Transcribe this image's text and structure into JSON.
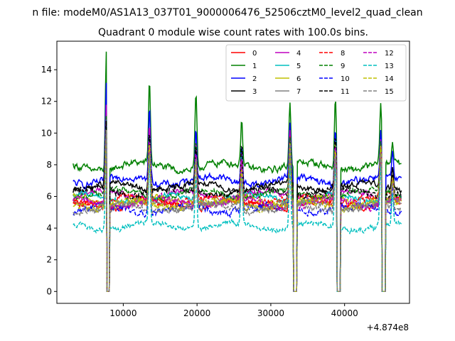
{
  "figure": {
    "suptitle": "n file: modeM0/AS1A13_037T01_9000006476_52506cztM0_level2_quad_clean",
    "title": "Quadrant 0 module wise count rates with 100.0s bins.",
    "offset_label": "+4.874e8"
  },
  "chart_data": {
    "type": "line",
    "title": "Quadrant 0 module wise count rates with 100.0s bins.",
    "xlabel": "",
    "ylabel": "",
    "x_offset": 487400000,
    "xlim": [
      1000,
      48800
    ],
    "ylim": [
      -0.75,
      15.8
    ],
    "xticks": [
      10000,
      20000,
      30000,
      40000
    ],
    "yticks": [
      0,
      2,
      4,
      6,
      8,
      10,
      12,
      14
    ],
    "grid": false,
    "legend_position": "top-right",
    "legend_columns": 4,
    "gap_times": [
      7900,
      33250,
      39150,
      45250
    ],
    "series": [
      {
        "name": "0",
        "color": "#ff0000",
        "style": "solid",
        "base": 5.5,
        "jitter": 0.35,
        "flare": [
          10.5,
          9.0,
          8.5,
          7.5,
          8.5,
          9.5,
          9.2,
          7.0
        ]
      },
      {
        "name": "1",
        "color": "#008000",
        "style": "solid",
        "base": 7.9,
        "jitter": 0.45,
        "flare": [
          15.1,
          13.2,
          12.4,
          11.0,
          12.0,
          12.4,
          11.8,
          9.3
        ]
      },
      {
        "name": "2",
        "color": "#0000ff",
        "style": "solid",
        "base": 7.0,
        "jitter": 0.45,
        "flare": [
          13.0,
          11.9,
          10.3,
          9.5,
          10.5,
          10.6,
          10.0,
          8.5
        ]
      },
      {
        "name": "3",
        "color": "#000000",
        "style": "solid",
        "base": 6.6,
        "jitter": 0.35,
        "flare": [
          11.0,
          10.2,
          9.0,
          8.5,
          9.2,
          9.5,
          9.0,
          8.0
        ]
      },
      {
        "name": "4",
        "color": "#bf00bf",
        "style": "solid",
        "base": 6.1,
        "jitter": 0.35,
        "flare": [
          11.5,
          10.8,
          9.4,
          9.0,
          10.2,
          9.7,
          9.8,
          7.5
        ]
      },
      {
        "name": "5",
        "color": "#00bfbf",
        "style": "solid",
        "base": 5.9,
        "jitter": 0.35,
        "flare": [
          10.8,
          9.9,
          9.0,
          8.5,
          9.6,
          9.4,
          9.3,
          7.2
        ]
      },
      {
        "name": "6",
        "color": "#bfbf00",
        "style": "solid",
        "base": 5.7,
        "jitter": 0.35,
        "flare": [
          10.6,
          9.5,
          8.8,
          8.0,
          9.3,
          9.2,
          9.0,
          7.0
        ]
      },
      {
        "name": "7",
        "color": "#808080",
        "style": "solid",
        "base": 5.4,
        "jitter": 0.35,
        "flare": [
          10.2,
          9.3,
          8.6,
          7.8,
          9.0,
          9.0,
          8.8,
          6.8
        ]
      },
      {
        "name": "8",
        "color": "#ff0000",
        "style": "dashed",
        "base": 5.8,
        "jitter": 0.4,
        "flare": [
          10.7,
          9.6,
          9.0,
          8.2,
          9.4,
          9.3,
          9.2,
          7.1
        ]
      },
      {
        "name": "9",
        "color": "#008000",
        "style": "dashed",
        "base": 6.2,
        "jitter": 0.4,
        "flare": [
          11.0,
          10.0,
          9.2,
          8.4,
          9.6,
          9.5,
          9.4,
          7.3
        ]
      },
      {
        "name": "10",
        "color": "#0000ff",
        "style": "dashed",
        "base": 5.2,
        "jitter": 0.45,
        "flare": [
          10.4,
          9.4,
          8.7,
          7.9,
          9.1,
          9.1,
          8.9,
          6.9
        ]
      },
      {
        "name": "11",
        "color": "#000000",
        "style": "dashed",
        "base": 6.3,
        "jitter": 0.4,
        "flare": [
          10.8,
          10.1,
          9.1,
          9.2,
          9.4,
          9.6,
          9.3,
          7.8
        ]
      },
      {
        "name": "12",
        "color": "#bf00bf",
        "style": "dashed",
        "base": 5.6,
        "jitter": 0.45,
        "flare": [
          10.5,
          9.6,
          8.9,
          8.1,
          9.3,
          9.2,
          9.0,
          7.0
        ]
      },
      {
        "name": "13",
        "color": "#00bfbf",
        "style": "dashed",
        "base": 4.1,
        "jitter": 0.35,
        "flare": [
          9.0,
          8.2,
          7.6,
          7.0,
          8.0,
          8.0,
          7.9,
          6.0
        ]
      },
      {
        "name": "14",
        "color": "#bfbf00",
        "style": "dashed",
        "base": 5.5,
        "jitter": 0.45,
        "flare": [
          10.3,
          9.4,
          8.7,
          7.9,
          9.1,
          9.1,
          8.9,
          6.9
        ]
      },
      {
        "name": "15",
        "color": "#808080",
        "style": "dashed",
        "base": 5.3,
        "jitter": 0.4,
        "flare": [
          10.1,
          9.2,
          8.5,
          7.7,
          8.9,
          8.9,
          8.7,
          6.8
        ]
      }
    ],
    "flare_times": [
      7700,
      13550,
      19850,
      26050,
      32600,
      38750,
      44900,
      46500
    ],
    "time_range": [
      3200,
      47700
    ],
    "bin_size": 100
  }
}
